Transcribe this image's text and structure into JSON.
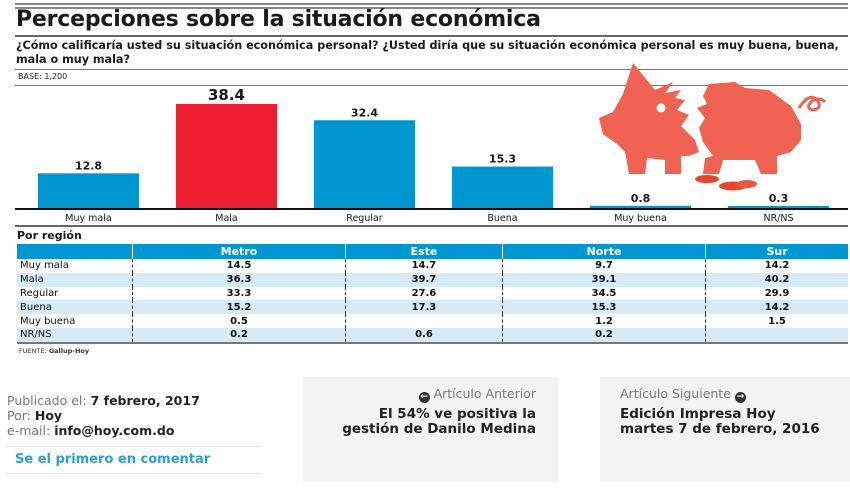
{
  "infographic": {
    "title": "Percepciones sobre la situación económica",
    "question": "¿Cómo calificaría usted su situación económica personal? ¿Usted diría que su situación económica personal es muy buena, buena, mala o muy mala?",
    "base": "BASE: 1,200",
    "region_title": "Por región",
    "source_label": "FUENTE:",
    "source_value": "Gallup-Hoy",
    "colors": {
      "bar": "#0096d1",
      "highlight": "#ed1c2e",
      "pig": "#f06251",
      "coin": "#e8472f",
      "table_alt": "#d6ebf7"
    },
    "decoration": "broken-piggy-bank-icon"
  },
  "chart_data": {
    "type": "bar",
    "title": "Percepciones sobre la situación económica",
    "xlabel": "",
    "ylabel": "",
    "categories": [
      "Muy mala",
      "Mala",
      "Regular",
      "Buena",
      "Muy buena",
      "NR/NS"
    ],
    "values": [
      12.8,
      38.4,
      32.4,
      15.3,
      0.8,
      0.3
    ],
    "value_labels": [
      "12.8",
      "38.4",
      "32.4",
      "15.3",
      "0.8",
      "0.3"
    ],
    "highlight_index": 1,
    "ylim": [
      0,
      38.4
    ],
    "grid": false,
    "legend": "none"
  },
  "region_table": {
    "columns": [
      "Metro",
      "Este",
      "Norte",
      "Sur"
    ],
    "rows": [
      {
        "label": "Muy mala",
        "values": [
          "14.5",
          "14.7",
          "9.7",
          "14.2"
        ]
      },
      {
        "label": "Mala",
        "values": [
          "36.3",
          "39.7",
          "39.1",
          "40.2"
        ]
      },
      {
        "label": "Regular",
        "values": [
          "33.3",
          "27.6",
          "34.5",
          "29.9"
        ]
      },
      {
        "label": "Buena",
        "values": [
          "15.2",
          "17.3",
          "15.3",
          "14.2"
        ]
      },
      {
        "label": "Muy buena",
        "values": [
          "0.5",
          "",
          "1.2",
          "1.5"
        ]
      },
      {
        "label": "NR/NS",
        "values": [
          "0.2",
          "0.6",
          "0.2",
          ""
        ]
      }
    ]
  },
  "article_meta": {
    "published_label": "Publicado el:",
    "published_value": "7 febrero, 2017",
    "author_label": "Por:",
    "author_value": "Hoy",
    "email_label": "e-mail:",
    "email_value": "info@hoy.com.do",
    "comment_link": "Se el primero en comentar"
  },
  "navigation": {
    "previous": {
      "kicker": "Artículo Anterior",
      "title": "El 54% ve positiva la gestión de Danilo Medina",
      "icon": "arrow-left-circle-icon"
    },
    "next": {
      "kicker": "Artículo Siguiente",
      "title": "Edición Impresa Hoy martes 7 de febrero, 2016",
      "icon": "arrow-right-circle-icon"
    }
  }
}
